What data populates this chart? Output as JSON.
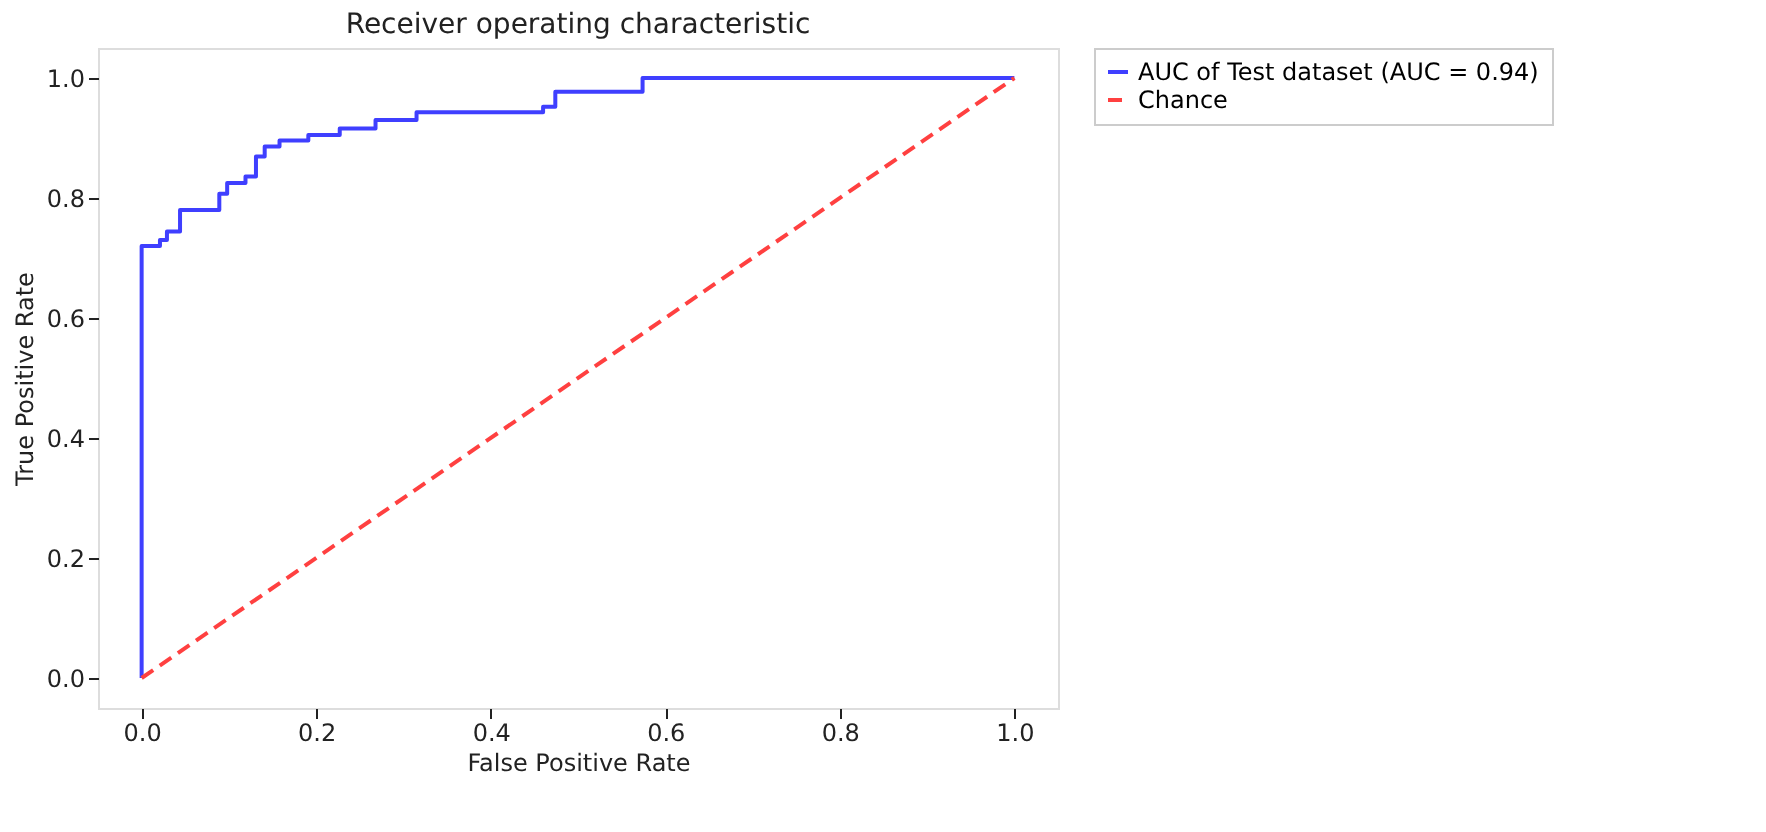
{
  "chart_data": {
    "type": "line",
    "title": "Receiver operating characteristic",
    "xlabel": "False Positive Rate",
    "ylabel": "True Positive Rate",
    "xlim": [
      -0.05,
      1.05
    ],
    "ylim": [
      -0.05,
      1.05
    ],
    "xticks": [
      {
        "value": 0,
        "label": "0.0"
      },
      0.2,
      0.4,
      0.6,
      0.8,
      {
        "value": 1,
        "label": "1.0"
      }
    ],
    "yticks": [
      {
        "value": 0,
        "label": "0.0"
      },
      0.2,
      0.4,
      0.6,
      0.8,
      {
        "value": 1,
        "label": "1.0"
      }
    ],
    "grid": false,
    "legend": "right",
    "series": [
      {
        "name": "AUC of Test dataset (AUC = 0.94)",
        "color": "#3f3fff",
        "line_style": "solid",
        "x": [
          0,
          0,
          0.021,
          0.021,
          0.029,
          0.029,
          0.044,
          0.044,
          0.089,
          0.089,
          0.098,
          0.098,
          0.119,
          0.119,
          0.131,
          0.131,
          0.141,
          0.141,
          0.158,
          0.158,
          0.191,
          0.191,
          0.227,
          0.227,
          0.268,
          0.268,
          0.315,
          0.315,
          0.46,
          0.46,
          0.474,
          0.474,
          0.574,
          0.574,
          1.0
        ],
        "values": [
          0,
          0.72,
          0.72,
          0.73,
          0.73,
          0.744,
          0.744,
          0.78,
          0.78,
          0.807,
          0.807,
          0.825,
          0.825,
          0.836,
          0.836,
          0.869,
          0.869,
          0.886,
          0.886,
          0.896,
          0.896,
          0.905,
          0.905,
          0.916,
          0.916,
          0.93,
          0.93,
          0.943,
          0.943,
          0.952,
          0.952,
          0.977,
          0.977,
          1.0,
          1.0
        ]
      },
      {
        "name": "Chance",
        "color": "#ff4040",
        "line_style": "dashed",
        "x": [
          0,
          1
        ],
        "values": [
          0,
          1
        ]
      }
    ]
  }
}
